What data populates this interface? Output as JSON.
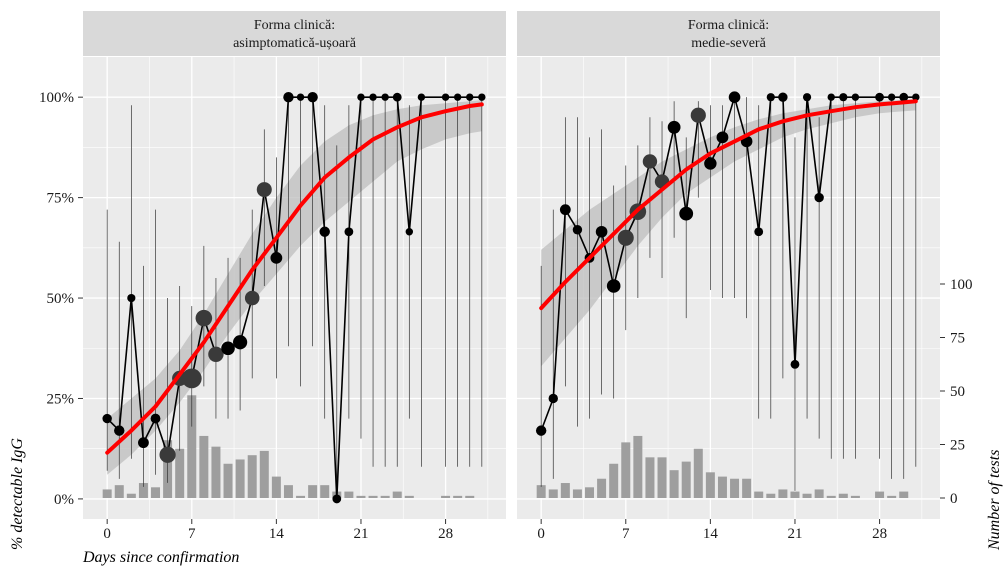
{
  "chart_data": {
    "type": "line",
    "y_axis_left": {
      "label": "% detectable IgG",
      "ticks": [
        "0%",
        "25%",
        "50%",
        "75%",
        "100%"
      ],
      "range": [
        -0.05,
        1.1
      ]
    },
    "y_axis_right": {
      "label": "Number of tests",
      "ticks": [
        "0",
        "25",
        "50",
        "75",
        "100"
      ],
      "range": [
        0,
        100
      ]
    },
    "x_axis": {
      "label": "Days since confirmation",
      "ticks": [
        "0",
        "7",
        "14",
        "21",
        "28"
      ],
      "range": [
        -2,
        33
      ]
    },
    "panels": [
      {
        "strip": [
          "Forma clinică:",
          "asimptomatică-ușoară"
        ],
        "series": {
          "days": [
            0,
            1,
            2,
            3,
            4,
            5,
            6,
            7,
            8,
            9,
            10,
            11,
            12,
            13,
            14,
            15,
            16,
            17,
            18,
            19,
            20,
            21,
            22,
            23,
            24,
            25,
            26,
            28,
            29,
            30,
            31
          ],
          "proportion": [
            0.2,
            0.17,
            0.5,
            0.14,
            0.2,
            0.11,
            0.3,
            0.3,
            0.45,
            0.36,
            0.375,
            0.39,
            0.5,
            0.77,
            0.6,
            1.0,
            1.0,
            1.0,
            0.665,
            0.0,
            0.665,
            1.0,
            1.0,
            1.0,
            1.0,
            0.665,
            1.0,
            1.0,
            1.0,
            1.0,
            1.0
          ],
          "ci_low": [
            0.07,
            0.05,
            0.1,
            0.03,
            0.06,
            0.04,
            0.12,
            0.18,
            0.28,
            0.2,
            0.2,
            0.22,
            0.3,
            0.53,
            0.3,
            0.38,
            0.28,
            0.38,
            0.2,
            0.0,
            0.2,
            0.15,
            0.08,
            0.08,
            0.08,
            0.2,
            0.08,
            0.08,
            0.08,
            0.08,
            0.08
          ],
          "ci_high": [
            0.72,
            0.64,
            0.98,
            0.58,
            0.72,
            0.5,
            0.53,
            0.48,
            0.63,
            0.55,
            0.6,
            0.6,
            0.72,
            0.92,
            0.85,
            1.0,
            1.0,
            1.0,
            0.98,
            0.88,
            0.98,
            1.0,
            1.0,
            1.0,
            1.0,
            0.98,
            1.0,
            1.0,
            1.0,
            1.0,
            1.0
          ],
          "tests": [
            4,
            6,
            2,
            7,
            5,
            27,
            23,
            48,
            29,
            24,
            16,
            18,
            20,
            22,
            10,
            6,
            1,
            6,
            6,
            3,
            3,
            1,
            1,
            1,
            3,
            1,
            0,
            1,
            1,
            1,
            0
          ]
        },
        "fit": {
          "x": [
            0,
            2,
            4,
            6,
            8,
            10,
            12,
            14,
            16,
            18,
            20,
            22,
            24,
            26,
            28,
            30,
            31
          ],
          "y": [
            0.115,
            0.17,
            0.23,
            0.31,
            0.39,
            0.48,
            0.57,
            0.65,
            0.73,
            0.8,
            0.85,
            0.895,
            0.925,
            0.95,
            0.965,
            0.978,
            0.982
          ],
          "ci_low": [
            0.06,
            0.11,
            0.17,
            0.24,
            0.32,
            0.41,
            0.49,
            0.56,
            0.63,
            0.69,
            0.74,
            0.79,
            0.84,
            0.87,
            0.895,
            0.91,
            0.915
          ],
          "ci_high": [
            0.2,
            0.25,
            0.3,
            0.37,
            0.46,
            0.56,
            0.66,
            0.75,
            0.83,
            0.89,
            0.93,
            0.955,
            0.97,
            0.98,
            0.985,
            0.99,
            0.993
          ]
        }
      },
      {
        "strip": [
          "Forma clinică:",
          "medie-severă"
        ],
        "series": {
          "days": [
            0,
            1,
            2,
            3,
            4,
            5,
            6,
            7,
            8,
            9,
            10,
            11,
            12,
            13,
            14,
            15,
            16,
            17,
            18,
            19,
            20,
            21,
            22,
            23,
            24,
            25,
            26,
            28,
            29,
            30,
            31
          ],
          "proportion": [
            0.17,
            0.25,
            0.72,
            0.67,
            0.6,
            0.665,
            0.53,
            0.65,
            0.715,
            0.84,
            0.79,
            0.925,
            0.71,
            0.955,
            0.835,
            0.9,
            1.0,
            0.89,
            0.665,
            1.0,
            1.0,
            0.335,
            1.0,
            0.75,
            1.0,
            1.0,
            1.0,
            1.0,
            1.0,
            1.0,
            1.0
          ],
          "ci_low": [
            0.03,
            0.05,
            0.28,
            0.18,
            0.2,
            0.26,
            0.25,
            0.42,
            0.5,
            0.6,
            0.55,
            0.65,
            0.45,
            0.75,
            0.52,
            0.5,
            0.5,
            0.45,
            0.2,
            0.2,
            0.3,
            0.02,
            0.2,
            0.15,
            0.1,
            0.1,
            0.1,
            0.1,
            0.05,
            0.05,
            0.08
          ],
          "ci_high": [
            0.58,
            0.72,
            0.95,
            0.95,
            0.9,
            0.92,
            0.78,
            0.83,
            0.88,
            0.95,
            0.94,
            0.99,
            0.9,
            0.99,
            0.98,
            0.98,
            1.0,
            1.0,
            0.98,
            1.0,
            1.0,
            0.9,
            1.0,
            0.95,
            1.0,
            1.0,
            1.0,
            1.0,
            1.0,
            1.0,
            1.0
          ],
          "tests": [
            6,
            4,
            7,
            4,
            5,
            9,
            16,
            26,
            29,
            19,
            19,
            13,
            17,
            23,
            12,
            10,
            9,
            9,
            3,
            2,
            4,
            3,
            2,
            4,
            1,
            2,
            1,
            3,
            1,
            3,
            0
          ]
        },
        "fit": {
          "x": [
            0,
            2,
            4,
            6,
            8,
            10,
            12,
            14,
            16,
            18,
            20,
            22,
            24,
            26,
            28,
            30,
            31
          ],
          "y": [
            0.475,
            0.54,
            0.6,
            0.66,
            0.72,
            0.77,
            0.82,
            0.86,
            0.89,
            0.92,
            0.94,
            0.955,
            0.965,
            0.975,
            0.982,
            0.987,
            0.99
          ],
          "ci_low": [
            0.33,
            0.4,
            0.47,
            0.55,
            0.63,
            0.7,
            0.76,
            0.8,
            0.84,
            0.87,
            0.9,
            0.92,
            0.935,
            0.95,
            0.96,
            0.965,
            0.967
          ],
          "ci_high": [
            0.62,
            0.67,
            0.72,
            0.76,
            0.8,
            0.84,
            0.87,
            0.9,
            0.925,
            0.945,
            0.96,
            0.97,
            0.98,
            0.985,
            0.99,
            0.993,
            0.995
          ]
        }
      }
    ]
  },
  "colors": {
    "panel_bg": "#ebebeb",
    "grid": "#ffffff",
    "strip_bg": "#d9d9d9",
    "fit_line": "#ff0000",
    "ribbon": "#bdbdbd",
    "bars": "#9e9e9e"
  }
}
